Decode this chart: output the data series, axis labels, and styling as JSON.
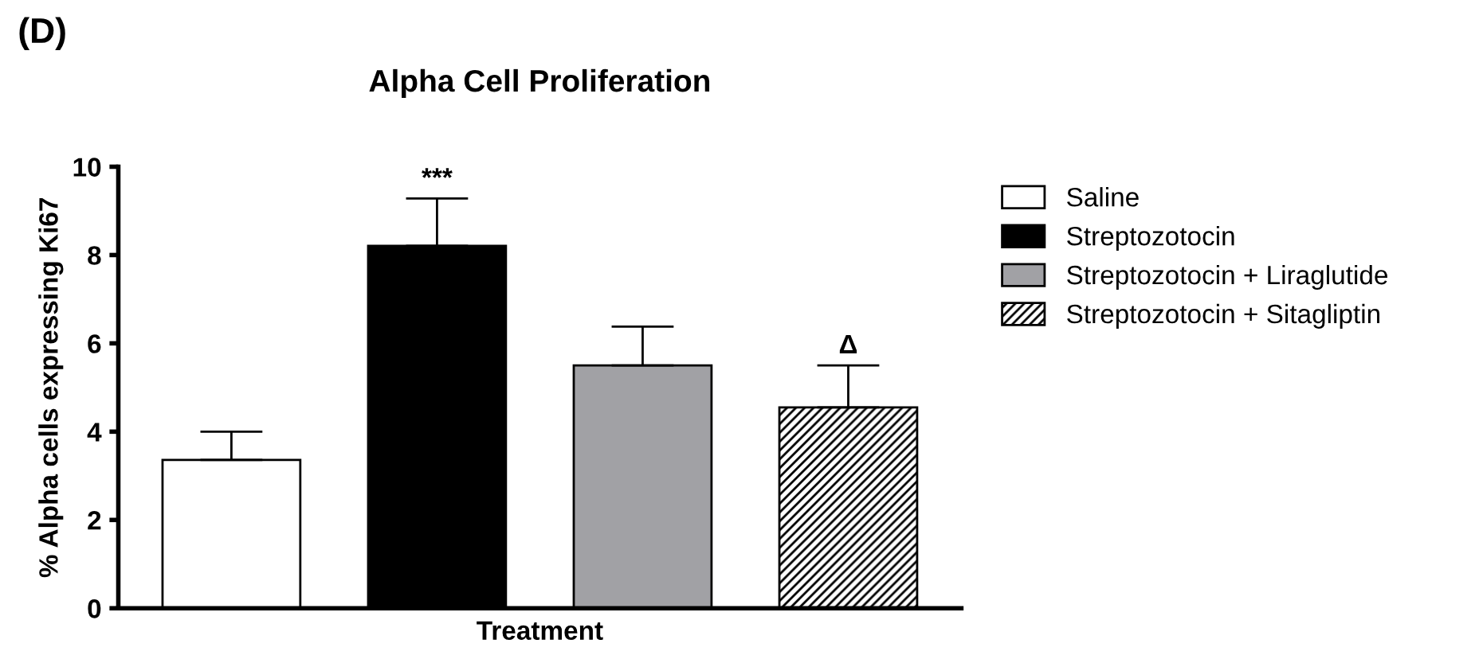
{
  "chart_data": {
    "type": "bar",
    "title": "Alpha Cell Proliferation",
    "xlabel": "Treatment",
    "ylabel": "% Alpha cells expressing Ki67",
    "categories": [
      null,
      null,
      null,
      null
    ],
    "series": [
      {
        "name": "Saline",
        "color": "#ffffff",
        "values": [
          3.36,
          null,
          null,
          null
        ],
        "errors": [
          0.64,
          null,
          null,
          null
        ]
      },
      {
        "name": "Streptozotocin",
        "color": "#000000",
        "values": [
          null,
          8.21,
          null,
          null
        ],
        "errors": [
          null,
          1.07,
          null,
          null
        ]
      },
      {
        "name": "Streptozotocin + Liraglutide",
        "color": "#a1a1a5",
        "values": [
          null,
          null,
          5.5,
          null
        ],
        "errors": [
          null,
          null,
          0.88,
          null
        ]
      },
      {
        "name": "Streptozotocin + Sitagliptin",
        "color": "#000000",
        "values": [
          null,
          null,
          null,
          4.55
        ],
        "errors": [
          null,
          null,
          null,
          0.95
        ]
      }
    ],
    "ylim": [
      0,
      10
    ],
    "yticks": [
      0,
      2,
      4,
      6,
      8,
      10
    ],
    "legend": "right",
    "grid": false,
    "annotations": [
      "(D)",
      {
        "text": "***",
        "y": 9.28
      },
      {
        "text": "Δ",
        "y": 5.5
      }
    ]
  }
}
